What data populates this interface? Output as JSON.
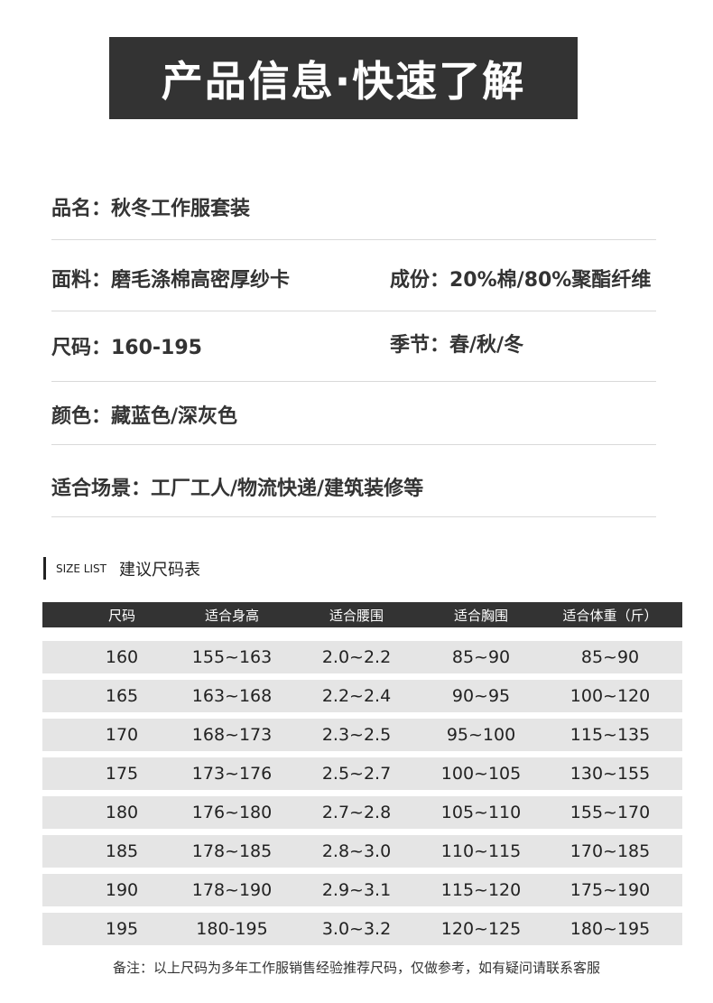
{
  "banner": {
    "title": "产品信息·快速了解"
  },
  "info": {
    "name": "品名：秋冬工作服套装",
    "fabric": "面料：磨毛涤棉高密厚纱卡",
    "composition": "成份：20%棉/80%聚酯纤维",
    "size": "尺码：160-195",
    "season": "季节：春/秋/冬",
    "color": "颜色：藏蓝色/深灰色",
    "usage": "适合场景：工厂工人/物流快递/建筑装修等"
  },
  "size_section": {
    "en": "SIZE LIST",
    "cn": "建议尺码表"
  },
  "table": {
    "headers": [
      "尺码",
      "适合身高",
      "适合腰围",
      "适合胸围",
      "适合体重（斤）"
    ],
    "rows": [
      [
        "160",
        "155~163",
        "2.0~2.2",
        "85~90",
        "85~90"
      ],
      [
        "165",
        "163~168",
        "2.2~2.4",
        "90~95",
        "100~120"
      ],
      [
        "170",
        "168~173",
        "2.3~2.5",
        "95~100",
        "115~135"
      ],
      [
        "175",
        "173~176",
        "2.5~2.7",
        "100~105",
        "130~155"
      ],
      [
        "180",
        "176~180",
        "2.7~2.8",
        "105~110",
        "155~170"
      ],
      [
        "185",
        "178~185",
        "2.8~3.0",
        "110~115",
        "170~185"
      ],
      [
        "190",
        "178~190",
        "2.9~3.1",
        "115~120",
        "175~190"
      ],
      [
        "195",
        "180-195",
        "3.0~3.2",
        "120~125",
        "180~195"
      ]
    ]
  },
  "note": "备注：以上尺码为多年工作服销售经验推荐尺码，仅做参考，如有疑问请联系客服"
}
